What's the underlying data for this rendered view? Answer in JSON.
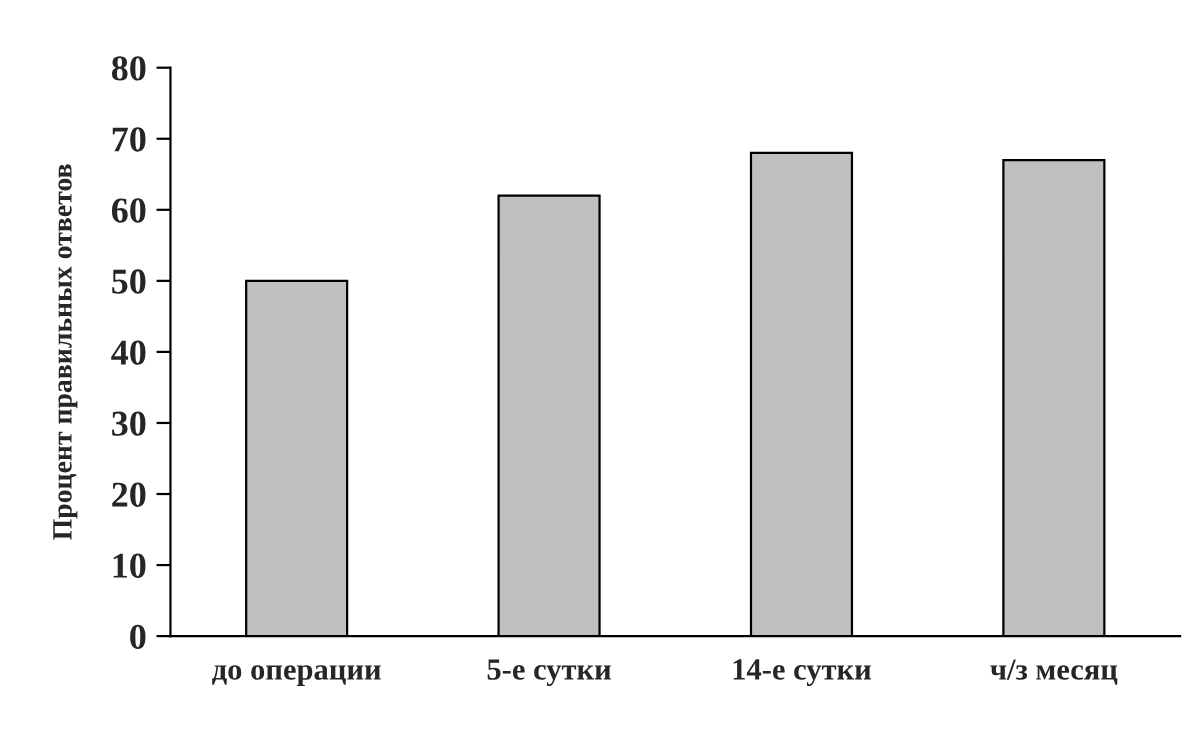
{
  "chart_data": {
    "type": "bar",
    "ylabel": "Процент правильных ответов",
    "categories": [
      "до операции",
      "5-е сутки",
      "14-е сутки",
      "ч/з месяц"
    ],
    "values": [
      50,
      62,
      68,
      67
    ],
    "color": "#c0c0c0",
    "ylim": [
      0,
      80
    ],
    "yticks": [
      0,
      10,
      20,
      30,
      40,
      50,
      60,
      70,
      80
    ],
    "grid": false,
    "legend": false
  }
}
